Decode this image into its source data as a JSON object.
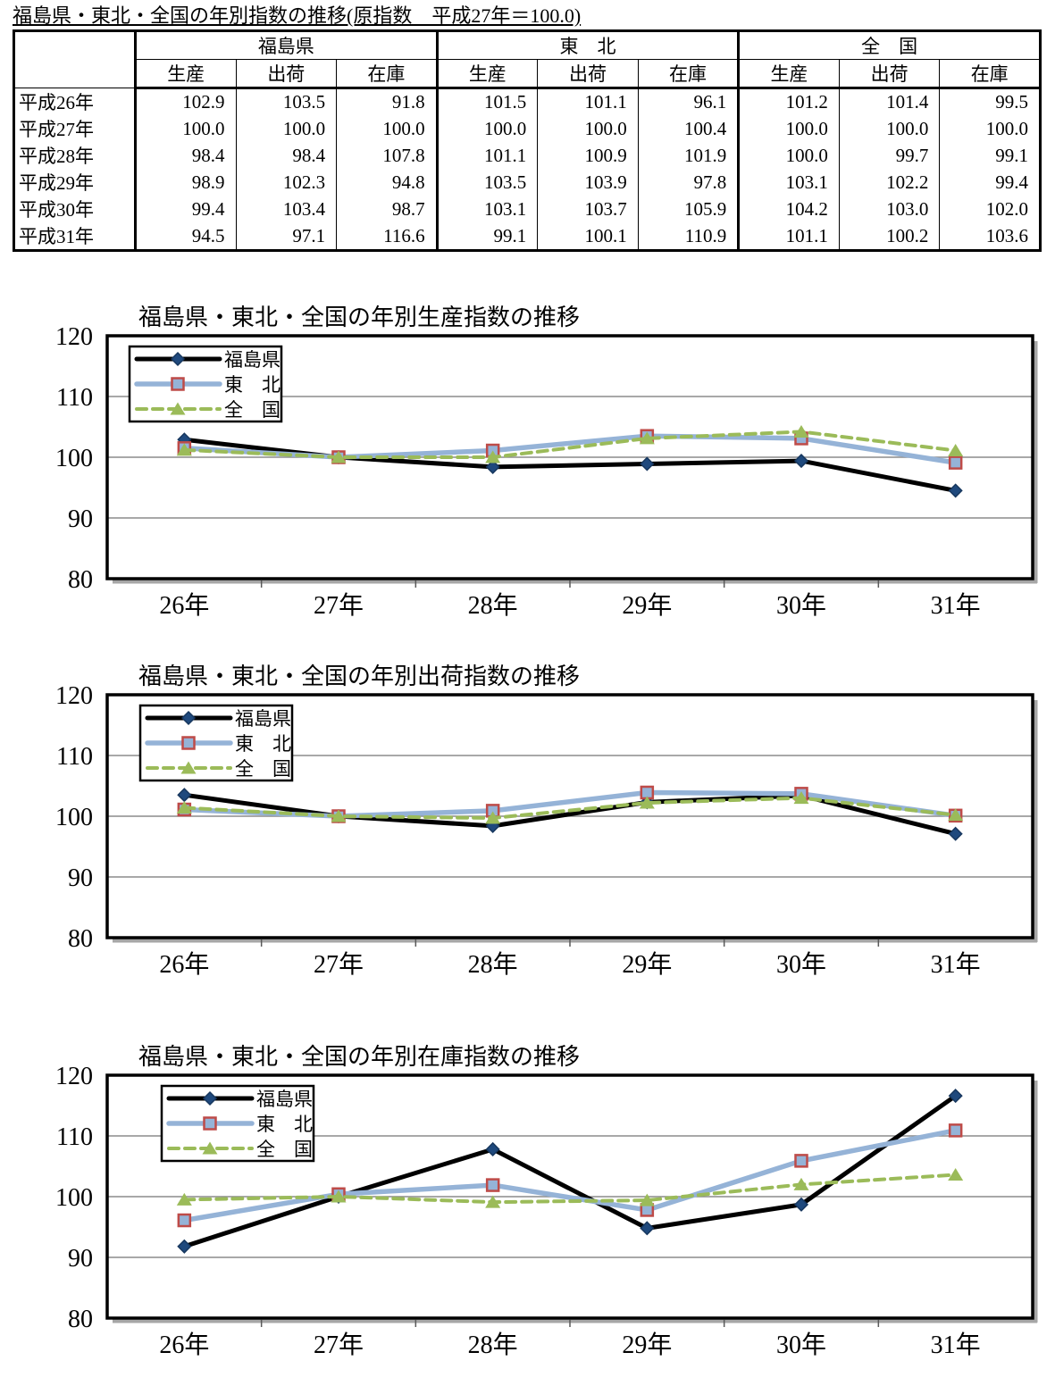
{
  "table": {
    "title": "福島県・東北・全国の年別指数の推移(原指数　平成27年＝100.0)",
    "groups": [
      "福島県",
      "東　北",
      "全　国"
    ],
    "measures": [
      "生産",
      "出荷",
      "在庫"
    ],
    "rows": [
      {
        "year": "平成26年",
        "values": [
          "102.9",
          "103.5",
          "91.8",
          "101.5",
          "101.1",
          "96.1",
          "101.2",
          "101.4",
          "99.5"
        ]
      },
      {
        "year": "平成27年",
        "values": [
          "100.0",
          "100.0",
          "100.0",
          "100.0",
          "100.0",
          "100.4",
          "100.0",
          "100.0",
          "100.0"
        ]
      },
      {
        "year": "平成28年",
        "values": [
          "98.4",
          "98.4",
          "107.8",
          "101.1",
          "100.9",
          "101.9",
          "100.0",
          "99.7",
          "99.1"
        ]
      },
      {
        "year": "平成29年",
        "values": [
          "98.9",
          "102.3",
          "94.8",
          "103.5",
          "103.9",
          "97.8",
          "103.1",
          "102.2",
          "99.4"
        ]
      },
      {
        "year": "平成30年",
        "values": [
          "99.4",
          "103.4",
          "98.7",
          "103.1",
          "103.7",
          "105.9",
          "104.2",
          "103.0",
          "102.0"
        ]
      },
      {
        "year": "平成31年",
        "values": [
          "94.5",
          "97.1",
          "116.6",
          "99.1",
          "100.1",
          "110.9",
          "101.1",
          "100.2",
          "103.6"
        ]
      }
    ]
  },
  "colors": {
    "fukushima_line": "#000000",
    "fukushima_marker": "#1F497D",
    "tohoku_line": "#95B3D7",
    "tohoku_marker_border": "#BE4B48",
    "zenkoku_line": "#9BBB59",
    "gridline": "#8C8C8C",
    "plot_border": "#000000",
    "plot_shadow": "#A6A6A6",
    "tick": "#595959"
  },
  "chart_data": [
    {
      "type": "line",
      "title": "福島県・東北・全国の年別生産指数の推移",
      "categories": [
        "26年",
        "27年",
        "28年",
        "29年",
        "30年",
        "31年"
      ],
      "series": [
        {
          "name": "福島県",
          "values": [
            102.9,
            100.0,
            98.4,
            98.9,
            99.4,
            94.5
          ],
          "color": "#000000",
          "width": 5,
          "dash": false,
          "marker": "diamond",
          "marker_color": "#1F497D",
          "marker_border": "#17375E"
        },
        {
          "name": "東　北",
          "values": [
            101.5,
            100.0,
            101.1,
            103.5,
            103.1,
            99.1
          ],
          "color": "#95B3D7",
          "width": 5.5,
          "dash": false,
          "marker": "square",
          "marker_color": "#95B3D7",
          "marker_border": "#BE4B48"
        },
        {
          "name": "全　国",
          "values": [
            101.2,
            100.0,
            100.0,
            103.1,
            104.2,
            101.1
          ],
          "color": "#9BBB59",
          "width": 4,
          "dash": true,
          "marker": "triangle",
          "marker_color": "#9BBB59",
          "marker_border": ""
        }
      ],
      "ylim": [
        80,
        120
      ],
      "yticks": [
        80,
        90,
        100,
        110,
        120
      ],
      "grid": true,
      "legend_position": "top-left"
    },
    {
      "type": "line",
      "title": "福島県・東北・全国の年別出荷指数の推移",
      "categories": [
        "26年",
        "27年",
        "28年",
        "29年",
        "30年",
        "31年"
      ],
      "series": [
        {
          "name": "福島県",
          "values": [
            103.5,
            100.0,
            98.4,
            102.3,
            103.4,
            97.1
          ],
          "color": "#000000",
          "width": 5,
          "dash": false,
          "marker": "diamond",
          "marker_color": "#1F497D",
          "marker_border": "#17375E"
        },
        {
          "name": "東　北",
          "values": [
            101.1,
            100.0,
            100.9,
            103.9,
            103.7,
            100.1
          ],
          "color": "#95B3D7",
          "width": 5.5,
          "dash": false,
          "marker": "square",
          "marker_color": "#95B3D7",
          "marker_border": "#BE4B48"
        },
        {
          "name": "全　国",
          "values": [
            101.4,
            100.0,
            99.7,
            102.2,
            103.0,
            100.2
          ],
          "color": "#9BBB59",
          "width": 4,
          "dash": true,
          "marker": "triangle",
          "marker_color": "#9BBB59",
          "marker_border": ""
        }
      ],
      "ylim": [
        80,
        120
      ],
      "yticks": [
        80,
        90,
        100,
        110,
        120
      ],
      "grid": true,
      "legend_position": "top-left"
    },
    {
      "type": "line",
      "title": "福島県・東北・全国の年別在庫指数の推移",
      "categories": [
        "26年",
        "27年",
        "28年",
        "29年",
        "30年",
        "31年"
      ],
      "series": [
        {
          "name": "福島県",
          "values": [
            91.8,
            100.0,
            107.8,
            94.8,
            98.7,
            116.6
          ],
          "color": "#000000",
          "width": 5,
          "dash": false,
          "marker": "diamond",
          "marker_color": "#1F497D",
          "marker_border": "#17375E"
        },
        {
          "name": "東　北",
          "values": [
            96.1,
            100.4,
            101.9,
            97.8,
            105.9,
            110.9
          ],
          "color": "#95B3D7",
          "width": 5.5,
          "dash": false,
          "marker": "square",
          "marker_color": "#95B3D7",
          "marker_border": "#BE4B48"
        },
        {
          "name": "全　国",
          "values": [
            99.5,
            100.0,
            99.1,
            99.4,
            102.0,
            103.6
          ],
          "color": "#9BBB59",
          "width": 4,
          "dash": true,
          "marker": "triangle",
          "marker_color": "#9BBB59",
          "marker_border": ""
        }
      ],
      "ylim": [
        80,
        120
      ],
      "yticks": [
        80,
        90,
        100,
        110,
        120
      ],
      "grid": true,
      "legend_position": "top-left"
    }
  ]
}
